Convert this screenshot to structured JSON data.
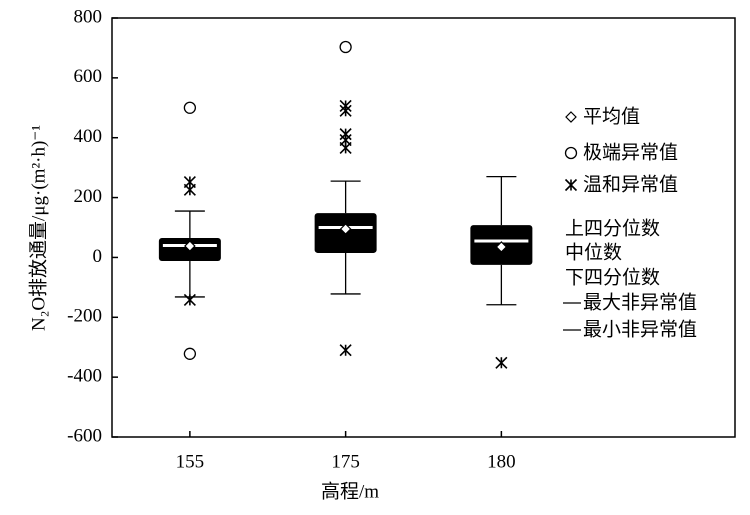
{
  "chart_data": {
    "type": "box",
    "x_label": "高程/m",
    "y_label": "N₂O排放通量/μg·(m²·h)⁻¹",
    "categories": [
      "155",
      "175",
      "180"
    ],
    "boxes": [
      {
        "whisker_low": -132,
        "q1": -12,
        "median": 40,
        "q3": 65,
        "whisker_high": 155,
        "mean": 38,
        "extreme_outliers": [
          500,
          -322
        ],
        "mild_outliers": [
          252,
          226,
          -142
        ]
      },
      {
        "whisker_low": -122,
        "q1": 15,
        "median": 100,
        "q3": 148,
        "whisker_high": 255,
        "mean": 95,
        "extreme_outliers": [
          703
        ],
        "mild_outliers": [
          506,
          490,
          412,
          392,
          366,
          -310
        ]
      },
      {
        "whisker_low": -158,
        "q1": -25,
        "median": 55,
        "q3": 108,
        "whisker_high": 270,
        "mean": 35,
        "extreme_outliers": [],
        "mild_outliers": [
          -352
        ]
      }
    ],
    "color": "#000000",
    "ylim": [
      -600,
      800
    ],
    "yticks": [
      -600,
      -400,
      -200,
      0,
      200,
      400,
      600,
      800
    ],
    "legend": [
      "平均值",
      "极端异常值",
      "温和异常值",
      "上四分位数",
      "中位数",
      "下四分位数",
      "最大非异常值",
      "最小非异常值"
    ]
  }
}
